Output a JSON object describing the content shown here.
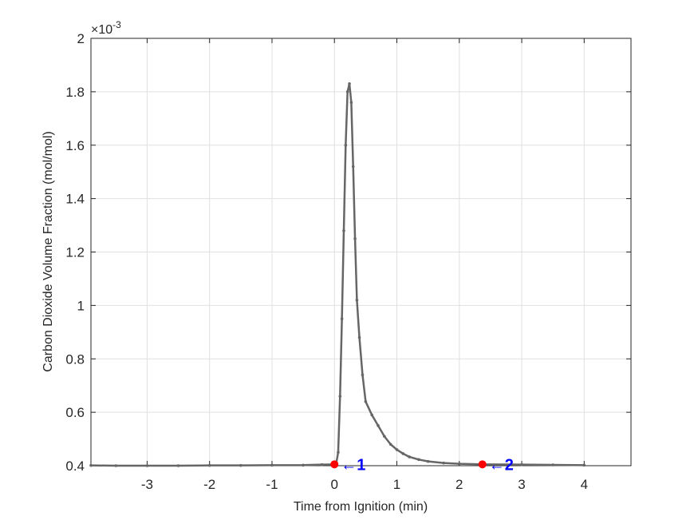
{
  "chart_data": {
    "type": "line",
    "xlabel": "Time from Ignition (min)",
    "ylabel": "Carbon Dioxide Volume Fraction (mol/mol)",
    "y_exponent_base": "×10",
    "y_exponent_power": "-3",
    "xlim": [
      -3.9,
      4.75
    ],
    "ylim": [
      0.4,
      2.0
    ],
    "y_scale_note": "values shown in units of 1e-3",
    "x_ticks": [
      -3,
      -2,
      -1,
      0,
      1,
      2,
      3,
      4
    ],
    "x_tick_labels": [
      "-3",
      "-2",
      "-1",
      "0",
      "1",
      "2",
      "3",
      "4"
    ],
    "y_ticks": [
      0.4,
      0.6,
      0.8,
      1.0,
      1.2,
      1.4,
      1.6,
      1.8,
      2.0
    ],
    "y_tick_labels": [
      "0.4",
      "0.6",
      "0.8",
      "1",
      "1.2",
      "1.4",
      "1.6",
      "1.8",
      "2"
    ],
    "grid": true,
    "series": [
      {
        "color": "#666666",
        "points": [
          [
            -3.9,
            0.401
          ],
          [
            -3.5,
            0.4
          ],
          [
            -3.0,
            0.4
          ],
          [
            -2.5,
            0.4
          ],
          [
            -2.0,
            0.401
          ],
          [
            -1.5,
            0.401
          ],
          [
            -1.0,
            0.402
          ],
          [
            -0.5,
            0.402
          ],
          [
            -0.2,
            0.404
          ],
          [
            0.0,
            0.405
          ],
          [
            0.03,
            0.41
          ],
          [
            0.06,
            0.45
          ],
          [
            0.09,
            0.66
          ],
          [
            0.12,
            0.95
          ],
          [
            0.15,
            1.28
          ],
          [
            0.18,
            1.6
          ],
          [
            0.21,
            1.8
          ],
          [
            0.24,
            1.83
          ],
          [
            0.27,
            1.76
          ],
          [
            0.3,
            1.52
          ],
          [
            0.33,
            1.25
          ],
          [
            0.36,
            1.02
          ],
          [
            0.4,
            0.88
          ],
          [
            0.45,
            0.74
          ],
          [
            0.5,
            0.64
          ],
          [
            0.6,
            0.59
          ],
          [
            0.7,
            0.55
          ],
          [
            0.8,
            0.51
          ],
          [
            0.9,
            0.48
          ],
          [
            1.0,
            0.46
          ],
          [
            1.1,
            0.445
          ],
          [
            1.2,
            0.433
          ],
          [
            1.35,
            0.423
          ],
          [
            1.5,
            0.416
          ],
          [
            1.75,
            0.41
          ],
          [
            2.0,
            0.407
          ],
          [
            2.4,
            0.405
          ],
          [
            3.0,
            0.404
          ],
          [
            3.5,
            0.403
          ],
          [
            4.0,
            0.402
          ]
        ]
      }
    ],
    "annotations": [
      {
        "x": 0.0,
        "y": 0.405,
        "label": "←1",
        "marker_color": "#ff0000",
        "text_color": "#0000ff"
      },
      {
        "x": 2.37,
        "y": 0.405,
        "label": "←2",
        "marker_color": "#ff0000",
        "text_color": "#0000ff"
      }
    ]
  }
}
